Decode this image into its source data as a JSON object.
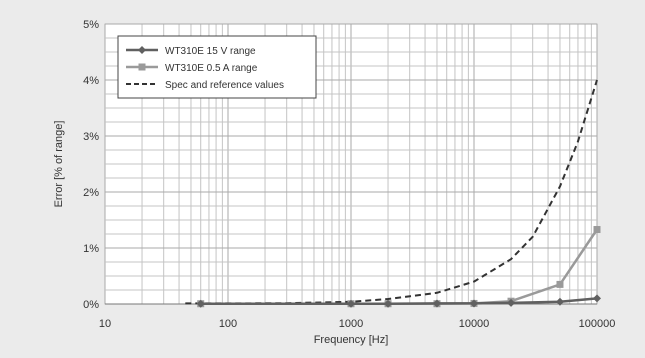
{
  "chart_data": {
    "type": "line",
    "x_scale": "log",
    "xlim": [
      10,
      100000
    ],
    "ylim": [
      0,
      5
    ],
    "xlabel": "Frequency [Hz]",
    "ylabel": "Error [% of  range]",
    "x_ticks": [
      {
        "value": 10,
        "label": "10"
      },
      {
        "value": 100,
        "label": "100"
      },
      {
        "value": 1000,
        "label": "1000"
      },
      {
        "value": 10000,
        "label": "10000"
      },
      {
        "value": 100000,
        "label": "100000"
      }
    ],
    "y_ticks": [
      {
        "value": 0,
        "label": "0%"
      },
      {
        "value": 1,
        "label": "1%"
      },
      {
        "value": 2,
        "label": "2%"
      },
      {
        "value": 3,
        "label": "3%"
      },
      {
        "value": 4,
        "label": "4%"
      },
      {
        "value": 5,
        "label": "5%"
      }
    ],
    "grid": true,
    "legend_position": "top-left",
    "series": [
      {
        "name": "WT310E 15 V range",
        "color": "#606060",
        "marker": "diamond",
        "dash": "solid",
        "x": [
          60,
          1000,
          2000,
          5000,
          10000,
          20000,
          50000,
          100000
        ],
        "y": [
          0.005,
          0.005,
          0.005,
          0.01,
          0.01,
          0.02,
          0.04,
          0.1
        ]
      },
      {
        "name": "WT310E 0.5 A range",
        "color": "#9a9a9a",
        "marker": "square",
        "dash": "solid",
        "x": [
          60,
          1000,
          2000,
          5000,
          10000,
          20000,
          50000,
          100000
        ],
        "y": [
          0.005,
          0.005,
          0.005,
          0.005,
          0.01,
          0.05,
          0.35,
          1.33
        ]
      },
      {
        "name": "Spec and reference values",
        "color": "#333333",
        "marker": "none",
        "dash": "dashed",
        "x": [
          45,
          100,
          300,
          1000,
          2000,
          5000,
          10000,
          20000,
          30000,
          50000,
          70000,
          100000
        ],
        "y": [
          0.01,
          0.01,
          0.015,
          0.04,
          0.09,
          0.2,
          0.4,
          0.8,
          1.2,
          2.1,
          2.9,
          4.0
        ]
      }
    ]
  }
}
